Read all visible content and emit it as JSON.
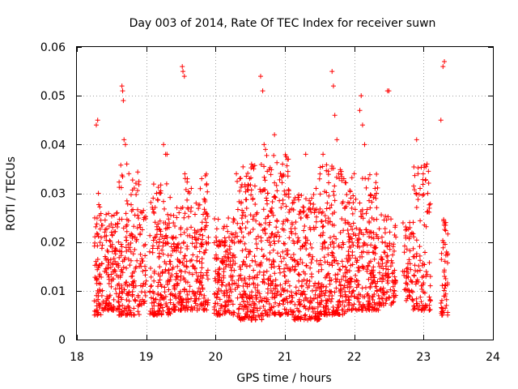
{
  "chart_data": {
    "type": "scatter",
    "title": "Day 003 of 2014, Rate Of TEC Index for receiver suwn",
    "xlabel": "GPS time / hours",
    "ylabel": "ROTI / TECUs",
    "xlim": [
      18,
      24
    ],
    "ylim": [
      0,
      0.06
    ],
    "grid": true,
    "x_ticks": [
      18,
      19,
      20,
      21,
      22,
      23,
      24
    ],
    "x_tick_labels": [
      "18",
      "19",
      "20",
      "21",
      "22",
      "23",
      "24"
    ],
    "y_ticks": [
      0,
      0.01,
      0.02,
      0.03,
      0.04,
      0.05,
      0.06
    ],
    "y_tick_labels": [
      "0",
      "0.01",
      "0.02",
      "0.03",
      "0.04",
      "0.05",
      "0.06"
    ],
    "marker": "+",
    "color": "#ff0000",
    "series": [
      {
        "name": "ROTI",
        "x": [
          18.28,
          18.3,
          18.31,
          18.32,
          18.3,
          18.28,
          18.4,
          18.45,
          18.5,
          18.55,
          18.58,
          18.6,
          18.65,
          18.66,
          18.67,
          18.68,
          18.7,
          18.72,
          18.75,
          18.78,
          18.8,
          18.85,
          18.9,
          18.95,
          19.0,
          19.05,
          19.1,
          19.15,
          19.2,
          19.25,
          19.28,
          19.3,
          19.33,
          19.35,
          19.4,
          19.45,
          19.5,
          19.52,
          19.53,
          19.55,
          19.6,
          19.65,
          19.7,
          19.75,
          19.8,
          20.0,
          20.05,
          20.1,
          20.15,
          20.2,
          20.25,
          20.3,
          20.35,
          20.4,
          20.45,
          20.5,
          20.55,
          20.6,
          20.65,
          20.68,
          20.7,
          20.72,
          20.75,
          20.8,
          20.85,
          20.9,
          20.95,
          21.0,
          21.05,
          21.1,
          21.15,
          21.2,
          21.25,
          21.3,
          21.35,
          21.4,
          21.45,
          21.5,
          21.55,
          21.6,
          21.65,
          21.68,
          21.7,
          21.72,
          21.75,
          21.8,
          21.85,
          21.9,
          21.95,
          22.0,
          22.05,
          22.08,
          22.1,
          22.12,
          22.15,
          22.2,
          22.25,
          22.3,
          22.35,
          22.4,
          22.45,
          22.48,
          22.5,
          22.55,
          22.6,
          22.7,
          22.75,
          22.8,
          22.85,
          22.9,
          22.92,
          22.95,
          23.0,
          23.05,
          23.1,
          23.25,
          23.28,
          23.3,
          23.32,
          23.33
        ],
        "y": [
          0.044,
          0.045,
          0.03,
          0.013,
          0.01,
          0.006,
          0.014,
          0.018,
          0.012,
          0.016,
          0.026,
          0.02,
          0.052,
          0.051,
          0.049,
          0.041,
          0.04,
          0.036,
          0.034,
          0.018,
          0.013,
          0.011,
          0.015,
          0.014,
          0.012,
          0.018,
          0.029,
          0.03,
          0.013,
          0.04,
          0.038,
          0.038,
          0.023,
          0.016,
          0.011,
          0.015,
          0.013,
          0.056,
          0.055,
          0.054,
          0.027,
          0.031,
          0.019,
          0.013,
          0.033,
          0.014,
          0.012,
          0.016,
          0.011,
          0.009,
          0.013,
          0.034,
          0.033,
          0.021,
          0.015,
          0.018,
          0.035,
          0.026,
          0.054,
          0.051,
          0.04,
          0.039,
          0.03,
          0.01,
          0.042,
          0.022,
          0.016,
          0.013,
          0.037,
          0.009,
          0.015,
          0.012,
          0.019,
          0.038,
          0.011,
          0.017,
          0.031,
          0.009,
          0.038,
          0.013,
          0.027,
          0.055,
          0.052,
          0.046,
          0.041,
          0.009,
          0.033,
          0.012,
          0.029,
          0.034,
          0.012,
          0.047,
          0.05,
          0.044,
          0.04,
          0.015,
          0.022,
          0.031,
          0.009,
          0.021,
          0.013,
          0.051,
          0.051,
          0.012,
          0.021,
          0.014,
          0.008,
          0.024,
          0.017,
          0.041,
          0.034,
          0.031,
          0.013,
          0.036,
          0.008,
          0.045,
          0.056,
          0.057,
          0.024,
          0.007
        ],
        "bands": [
          {
            "x_range": [
              18.25,
              18.38
            ],
            "y_range": [
              0.005,
              0.03
            ],
            "count": 70
          },
          {
            "x_range": [
              18.4,
              18.6
            ],
            "y_range": [
              0.006,
              0.026
            ],
            "count": 110
          },
          {
            "x_range": [
              18.6,
              18.9
            ],
            "y_range": [
              0.005,
              0.036
            ],
            "count": 160
          },
          {
            "x_range": [
              18.9,
              19.0
            ],
            "y_range": [
              0.007,
              0.028
            ],
            "count": 40
          },
          {
            "x_range": [
              19.05,
              19.35
            ],
            "y_range": [
              0.005,
              0.032
            ],
            "count": 170
          },
          {
            "x_range": [
              19.35,
              19.55
            ],
            "y_range": [
              0.006,
              0.028
            ],
            "count": 100
          },
          {
            "x_range": [
              19.55,
              19.9
            ],
            "y_range": [
              0.006,
              0.034
            ],
            "count": 180
          },
          {
            "x_range": [
              19.98,
              20.3
            ],
            "y_range": [
              0.005,
              0.025
            ],
            "count": 170
          },
          {
            "x_range": [
              20.3,
              20.7
            ],
            "y_range": [
              0.004,
              0.036
            ],
            "count": 230
          },
          {
            "x_range": [
              20.7,
              21.1
            ],
            "y_range": [
              0.005,
              0.038
            ],
            "count": 230
          },
          {
            "x_range": [
              21.1,
              21.5
            ],
            "y_range": [
              0.004,
              0.03
            ],
            "count": 210
          },
          {
            "x_range": [
              21.5,
              21.9
            ],
            "y_range": [
              0.005,
              0.036
            ],
            "count": 230
          },
          {
            "x_range": [
              21.9,
              22.35
            ],
            "y_range": [
              0.006,
              0.034
            ],
            "count": 250
          },
          {
            "x_range": [
              22.35,
              22.6
            ],
            "y_range": [
              0.007,
              0.026
            ],
            "count": 110
          },
          {
            "x_range": [
              22.7,
              22.85
            ],
            "y_range": [
              0.008,
              0.024
            ],
            "count": 50
          },
          {
            "x_range": [
              22.85,
              23.1
            ],
            "y_range": [
              0.006,
              0.036
            ],
            "count": 110
          },
          {
            "x_range": [
              23.25,
              23.35
            ],
            "y_range": [
              0.005,
              0.025
            ],
            "count": 50
          }
        ]
      }
    ]
  }
}
